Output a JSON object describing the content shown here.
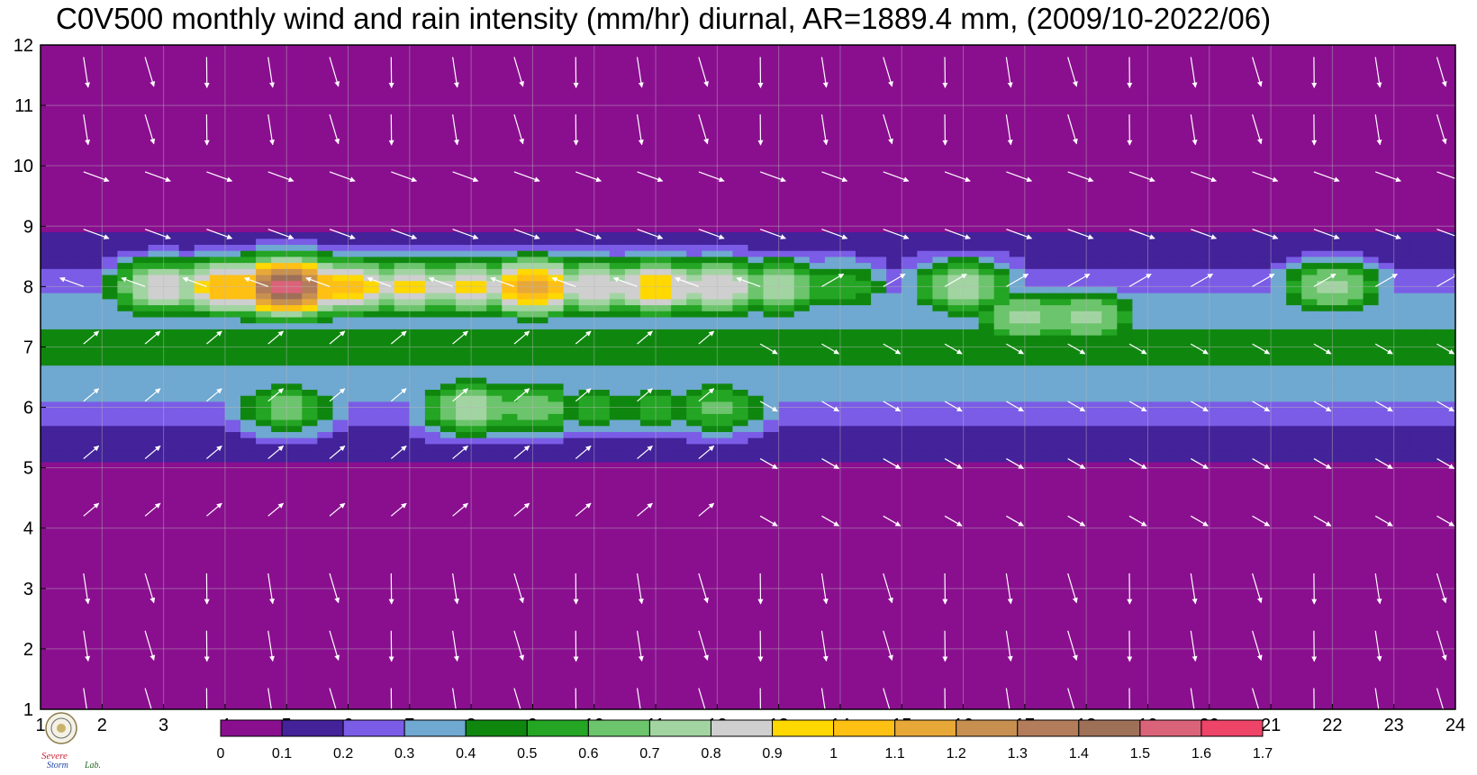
{
  "chart_data": {
    "type": "heatmap",
    "title": "C0V500 monthly wind and rain intensity (mm/hr) diurnal, AR=1889.4 mm, (2009/10-2022/06)",
    "xlabel": "",
    "ylabel": "",
    "xlim": [
      1,
      24
    ],
    "ylim": [
      1,
      12
    ],
    "x_ticks": [
      "1",
      "2",
      "3",
      "4",
      "5",
      "6",
      "7",
      "8",
      "9",
      "10",
      "11",
      "12",
      "13",
      "14",
      "15",
      "16",
      "17",
      "18",
      "19",
      "20",
      "21",
      "22",
      "23",
      "24"
    ],
    "y_ticks": [
      "1",
      "2",
      "3",
      "4",
      "5",
      "6",
      "7",
      "8",
      "9",
      "10",
      "11",
      "12"
    ],
    "grid": true,
    "colorbar": {
      "labels": [
        "0",
        "0.1",
        "0.2",
        "0.3",
        "0.4",
        "0.5",
        "0.6",
        "0.7",
        "0.8",
        "0.9",
        "1",
        "1.1",
        "1.2",
        "1.3",
        "1.4",
        "1.5",
        "1.6",
        "1.7"
      ],
      "colors": [
        "#8a0f8f",
        "#43229a",
        "#7a5ce6",
        "#6fa8d0",
        "#0f870f",
        "#24a524",
        "#6cc46c",
        "#a2d4a2",
        "#cfcfcf",
        "#ffd800",
        "#ffc014",
        "#e8a838",
        "#c79050",
        "#b37c5a",
        "#9e7058",
        "#db6379",
        "#ed4468"
      ]
    },
    "contour_levels": [
      0.1,
      0.2,
      0.3,
      0.4,
      0.5,
      0.6,
      0.7,
      0.8,
      0.9,
      1.0,
      1.1,
      1.2,
      1.3,
      1.4,
      1.5,
      1.6
    ],
    "background_color": "#8a0f8f",
    "contour_line_color": "#e8a020",
    "vector_color": "#ffffff",
    "rain_peaks": [
      {
        "x": 5,
        "y": 8,
        "value": 1.55
      },
      {
        "x": 4,
        "y": 8,
        "value": 1.1
      },
      {
        "x": 6,
        "y": 8,
        "value": 1.05
      },
      {
        "x": 3,
        "y": 8,
        "value": 0.9
      },
      {
        "x": 7,
        "y": 8,
        "value": 0.95
      },
      {
        "x": 8,
        "y": 8,
        "value": 0.95
      },
      {
        "x": 9,
        "y": 8,
        "value": 1.2
      },
      {
        "x": 10,
        "y": 8,
        "value": 0.92
      },
      {
        "x": 11,
        "y": 8,
        "value": 1.0
      },
      {
        "x": 12,
        "y": 8,
        "value": 0.92
      },
      {
        "x": 13,
        "y": 8,
        "value": 0.8
      },
      {
        "x": 14,
        "y": 8,
        "value": 0.6
      },
      {
        "x": 16,
        "y": 8,
        "value": 0.8
      },
      {
        "x": 17,
        "y": 7.5,
        "value": 0.75
      },
      {
        "x": 18,
        "y": 7.5,
        "value": 0.75
      },
      {
        "x": 22,
        "y": 8,
        "value": 0.75
      },
      {
        "x": 5,
        "y": 6,
        "value": 0.68
      },
      {
        "x": 8,
        "y": 6,
        "value": 0.8
      },
      {
        "x": 12,
        "y": 6,
        "value": 0.65
      },
      {
        "x": 9,
        "y": 6,
        "value": 0.7
      },
      {
        "x": 10,
        "y": 6,
        "value": 0.55
      },
      {
        "x": 11,
        "y": 6,
        "value": 0.55
      }
    ]
  },
  "colorbar_ticks": [
    "0",
    "0.1",
    "0.2",
    "0.3",
    "0.4",
    "0.5",
    "0.6",
    "0.7",
    "0.8",
    "0.9",
    "1",
    "1.1",
    "1.2",
    "1.3",
    "1.4",
    "1.5",
    "1.6",
    "1.7"
  ],
  "logo": {
    "icon": "seal-icon",
    "text_severe": "Severe",
    "text_storm": "Storm",
    "text_lab": "Lab."
  }
}
